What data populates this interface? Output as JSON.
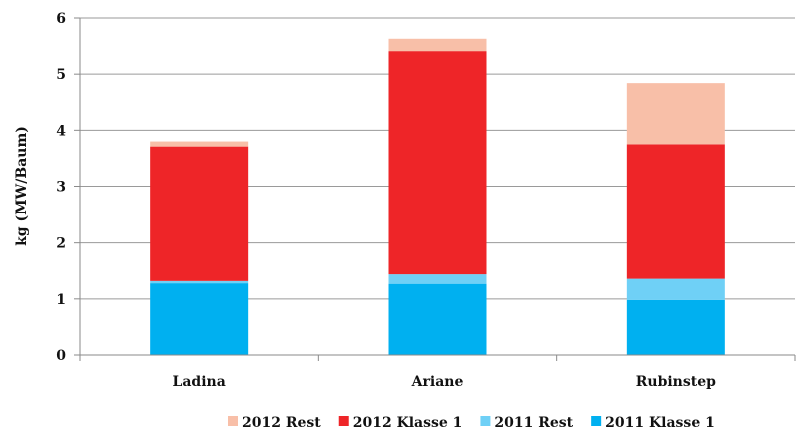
{
  "chart_data": {
    "type": "bar",
    "stacked": true,
    "categories": [
      "Ladina",
      "Ariane",
      "Rubinstep"
    ],
    "ylabel": "kg (MW/Baum)",
    "ylim": [
      0,
      6
    ],
    "yticks": [
      "0",
      "1",
      "2",
      "3",
      "4",
      "5",
      "6"
    ],
    "grid": true,
    "legend_position": "bottom",
    "series": [
      {
        "name": "2011 Klasse 1",
        "color": "#00b0f0",
        "values": [
          1.28,
          1.27,
          0.98
        ]
      },
      {
        "name": "2011 Rest",
        "color": "#6fd0f6",
        "values": [
          0.04,
          0.17,
          0.38
        ]
      },
      {
        "name": "2012 Klasse 1",
        "color": "#ee2528",
        "values": [
          2.39,
          3.97,
          2.39
        ]
      },
      {
        "name": "2012 Rest",
        "color": "#f8bfa8",
        "values": [
          0.09,
          0.22,
          1.09
        ]
      }
    ],
    "legend_order": [
      "2012 Rest",
      "2012 Klasse 1",
      "2011 Rest",
      "2011 Klasse 1"
    ]
  }
}
